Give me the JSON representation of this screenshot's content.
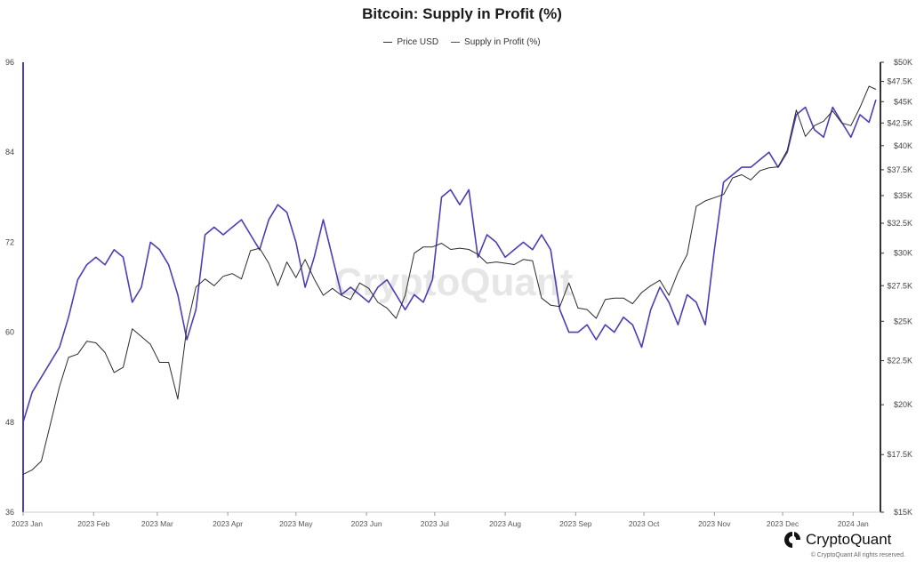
{
  "title": "Bitcoin: Supply in Profit (%)",
  "legend": {
    "price_label": "Price USD",
    "supply_label": "Supply in Profit (%)"
  },
  "colors": {
    "price": "#2b2b2b",
    "supply": "#4a3fb5",
    "axis": "#333333",
    "watermark": "#e6e6e6"
  },
  "watermark": "CryptoQuant",
  "brand": {
    "name": "CryptoQuant",
    "copyright": "© CryptoQuant All rights reserved."
  },
  "chart_data": {
    "type": "line",
    "x_ticks": [
      "2023 Jan",
      "2023 Feb",
      "2023 Mar",
      "2023 Apr",
      "2023 May",
      "2023 Jun",
      "2023 Jul",
      "2023 Aug",
      "2023 Sep",
      "2023 Oct",
      "2023 Nov",
      "2023 Dec",
      "2024 Jan"
    ],
    "y_left_ticks": [
      "96",
      "84",
      "72",
      "60",
      "48",
      "36"
    ],
    "y_left_range": [
      36,
      96
    ],
    "y_right_ticks": [
      "$50K",
      "$47.5K",
      "$45K",
      "$42.5K",
      "$40K",
      "$37.5K",
      "$35K",
      "$32.5K",
      "$30K",
      "$27.5K",
      "$25K",
      "$22.5K",
      "$20K",
      "$17.5K",
      "$15K"
    ],
    "y_right_range": [
      15000,
      50000
    ],
    "y_right_scale": "log",
    "legend_placement": "top-center",
    "grid": false,
    "series": [
      {
        "name": "Supply in Profit (%)",
        "axis": "left",
        "x": [
          "2023-01-01",
          "2023-01-05",
          "2023-01-09",
          "2023-01-13",
          "2023-01-17",
          "2023-01-21",
          "2023-01-25",
          "2023-01-29",
          "2023-02-02",
          "2023-02-06",
          "2023-02-10",
          "2023-02-14",
          "2023-02-18",
          "2023-02-22",
          "2023-02-26",
          "2023-03-02",
          "2023-03-06",
          "2023-03-10",
          "2023-03-14",
          "2023-03-18",
          "2023-03-22",
          "2023-03-26",
          "2023-03-30",
          "2023-04-03",
          "2023-04-07",
          "2023-04-11",
          "2023-04-15",
          "2023-04-19",
          "2023-04-23",
          "2023-04-27",
          "2023-05-01",
          "2023-05-05",
          "2023-05-09",
          "2023-05-13",
          "2023-05-17",
          "2023-05-21",
          "2023-05-25",
          "2023-05-29",
          "2023-06-02",
          "2023-06-06",
          "2023-06-10",
          "2023-06-14",
          "2023-06-18",
          "2023-06-22",
          "2023-06-26",
          "2023-06-30",
          "2023-07-04",
          "2023-07-08",
          "2023-07-12",
          "2023-07-16",
          "2023-07-20",
          "2023-07-24",
          "2023-07-28",
          "2023-08-01",
          "2023-08-05",
          "2023-08-09",
          "2023-08-13",
          "2023-08-17",
          "2023-08-21",
          "2023-08-25",
          "2023-08-29",
          "2023-09-02",
          "2023-09-06",
          "2023-09-10",
          "2023-09-14",
          "2023-09-18",
          "2023-09-22",
          "2023-09-26",
          "2023-09-30",
          "2023-10-04",
          "2023-10-08",
          "2023-10-12",
          "2023-10-16",
          "2023-10-20",
          "2023-10-24",
          "2023-10-28",
          "2023-11-01",
          "2023-11-05",
          "2023-11-09",
          "2023-11-13",
          "2023-11-17",
          "2023-11-21",
          "2023-11-25",
          "2023-11-29",
          "2023-12-03",
          "2023-12-07",
          "2023-12-11",
          "2023-12-15",
          "2023-12-19",
          "2023-12-23",
          "2023-12-27",
          "2023-12-31",
          "2024-01-04",
          "2024-01-08",
          "2024-01-11"
        ],
        "values": [
          48,
          52,
          54,
          56,
          58,
          62,
          67,
          69,
          70,
          69,
          71,
          70,
          64,
          66,
          72,
          71,
          69,
          65,
          59,
          63,
          73,
          74,
          73,
          74,
          75,
          73,
          71,
          75,
          77,
          76,
          72,
          66,
          70,
          75,
          70,
          65,
          66,
          65,
          64,
          66,
          67,
          65,
          63,
          65,
          64,
          67,
          78,
          79,
          77,
          79,
          70,
          73,
          72,
          70,
          71,
          72,
          71,
          73,
          71,
          63,
          60,
          60,
          61,
          59,
          61,
          60,
          62,
          61,
          58,
          63,
          66,
          64,
          61,
          65,
          64,
          61,
          71,
          80,
          81,
          82,
          82,
          83,
          84,
          82,
          84,
          89,
          90,
          87,
          86,
          90,
          88,
          86,
          89,
          88,
          91
        ]
      },
      {
        "name": "Price USD",
        "axis": "right",
        "x": [
          "2023-01-01",
          "2023-01-05",
          "2023-01-09",
          "2023-01-13",
          "2023-01-17",
          "2023-01-21",
          "2023-01-25",
          "2023-01-29",
          "2023-02-02",
          "2023-02-06",
          "2023-02-10",
          "2023-02-14",
          "2023-02-18",
          "2023-02-22",
          "2023-02-26",
          "2023-03-02",
          "2023-03-06",
          "2023-03-10",
          "2023-03-14",
          "2023-03-18",
          "2023-03-22",
          "2023-03-26",
          "2023-03-30",
          "2023-04-03",
          "2023-04-07",
          "2023-04-11",
          "2023-04-15",
          "2023-04-19",
          "2023-04-23",
          "2023-04-27",
          "2023-05-01",
          "2023-05-05",
          "2023-05-09",
          "2023-05-13",
          "2023-05-17",
          "2023-05-21",
          "2023-05-25",
          "2023-05-29",
          "2023-06-02",
          "2023-06-06",
          "2023-06-10",
          "2023-06-14",
          "2023-06-18",
          "2023-06-22",
          "2023-06-26",
          "2023-06-30",
          "2023-07-04",
          "2023-07-08",
          "2023-07-12",
          "2023-07-16",
          "2023-07-20",
          "2023-07-24",
          "2023-07-28",
          "2023-08-01",
          "2023-08-05",
          "2023-08-09",
          "2023-08-13",
          "2023-08-17",
          "2023-08-21",
          "2023-08-25",
          "2023-08-29",
          "2023-09-02",
          "2023-09-06",
          "2023-09-10",
          "2023-09-14",
          "2023-09-18",
          "2023-09-22",
          "2023-09-26",
          "2023-09-30",
          "2023-10-04",
          "2023-10-08",
          "2023-10-12",
          "2023-10-16",
          "2023-10-20",
          "2023-10-24",
          "2023-10-28",
          "2023-11-01",
          "2023-11-05",
          "2023-11-09",
          "2023-11-13",
          "2023-11-17",
          "2023-11-21",
          "2023-11-25",
          "2023-11-29",
          "2023-12-03",
          "2023-12-07",
          "2023-12-11",
          "2023-12-15",
          "2023-12-19",
          "2023-12-23",
          "2023-12-27",
          "2023-12-31",
          "2024-01-04",
          "2024-01-08",
          "2024-01-11"
        ],
        "values": [
          16600,
          16800,
          17200,
          19000,
          21000,
          22700,
          22900,
          23700,
          23600,
          23000,
          21800,
          22100,
          24500,
          24000,
          23500,
          22400,
          22400,
          20300,
          24600,
          27400,
          28000,
          27500,
          28200,
          28400,
          28000,
          30200,
          30400,
          29200,
          27500,
          29300,
          28100,
          29500,
          28000,
          26800,
          27300,
          26800,
          26500,
          27700,
          27300,
          26300,
          25900,
          25200,
          26800,
          30000,
          30500,
          30500,
          30800,
          30300,
          30400,
          30300,
          29900,
          29200,
          29300,
          29200,
          29100,
          29500,
          29400,
          26600,
          26100,
          26000,
          27700,
          25900,
          25800,
          25200,
          26500,
          26600,
          26600,
          26200,
          27000,
          27500,
          27900,
          26800,
          28500,
          29900,
          34000,
          34500,
          34800,
          35100,
          36700,
          37000,
          36500,
          37400,
          37700,
          37800,
          39500,
          44000,
          41000,
          42200,
          42700,
          43900,
          42500,
          42200,
          44300,
          46900,
          46500
        ]
      }
    ]
  }
}
